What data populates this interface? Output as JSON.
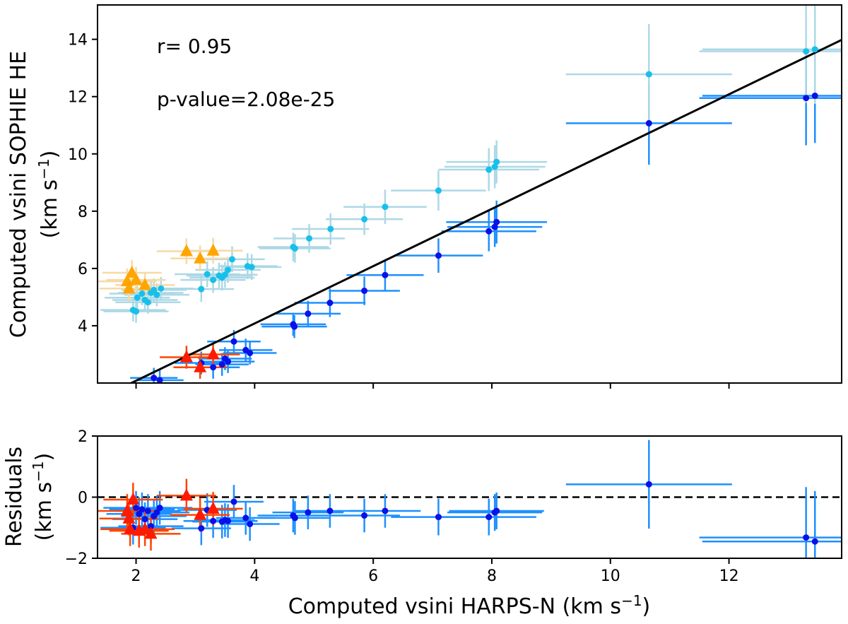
{
  "figure": {
    "top_axis_ylabel_line1": "Computed vsini SOPHIE HE",
    "top_axis_ylabel_line2_prefix": "(km s",
    "top_axis_ylabel_line2_exp": "−1",
    "top_axis_ylabel_line2_suffix": ")",
    "bottom_axis_ylabel_line1": "Residuals",
    "bottom_axis_ylabel_line2_prefix": "(km s",
    "bottom_axis_ylabel_line2_exp": "−1",
    "bottom_axis_ylabel_line2_suffix": ")",
    "xlabel_prefix": "Computed vsini HARPS-N (km s",
    "xlabel_exp": "−1",
    "xlabel_suffix": ")",
    "annotation_r": "r= 0.95",
    "annotation_p": "p-value=2.08e-25"
  },
  "colors": {
    "dark_blue_point": "#0a10e8",
    "blue_errorbar": "#1e90ff",
    "light_blue_point": "#17c0ea",
    "light_blue_errorbar": "#add8e6",
    "orange_triangle": "#ffa500",
    "orange_errorbar": "#f6d9a6",
    "red_triangle": "#ff1a00",
    "red_errorbar": "#ff4500",
    "fit_line": "#000000"
  },
  "chart_data": [
    {
      "type": "scatter",
      "panel": "top",
      "xlim": [
        1.35,
        13.9
      ],
      "ylim": [
        2.0,
        15.2
      ],
      "x_ticks": [
        2,
        4,
        6,
        8,
        10,
        12
      ],
      "y_ticks": [
        4,
        6,
        8,
        10,
        12,
        14
      ],
      "x_tick_labels_shown": false,
      "fit_line": {
        "slope": 1.0,
        "intercept": 0.08
      },
      "series": [
        {
          "marker": "circle",
          "color": "dark_blue_point",
          "errcolor": "blue_errorbar",
          "points": [
            [
              2.3,
              2.18,
              0.4,
              0.35
            ],
            [
              2.4,
              2.1,
              0.4,
              0.35
            ],
            [
              3.1,
              2.7,
              0.45,
              0.4
            ],
            [
              3.3,
              2.55,
              0.45,
              0.4
            ],
            [
              3.45,
              2.65,
              0.45,
              0.4
            ],
            [
              3.5,
              2.85,
              0.45,
              0.4
            ],
            [
              3.55,
              2.75,
              0.45,
              0.4
            ],
            [
              3.65,
              3.45,
              0.45,
              0.4
            ],
            [
              3.85,
              3.15,
              0.45,
              0.4
            ],
            [
              3.92,
              3.05,
              0.45,
              0.4
            ],
            [
              4.65,
              4.05,
              0.55,
              0.4
            ],
            [
              4.67,
              3.97,
              0.55,
              0.4
            ],
            [
              4.9,
              4.42,
              0.55,
              0.45
            ],
            [
              5.27,
              4.8,
              0.6,
              0.5
            ],
            [
              5.85,
              5.22,
              0.6,
              0.5
            ],
            [
              6.2,
              5.77,
              0.65,
              0.55
            ],
            [
              7.1,
              6.45,
              0.75,
              0.6
            ],
            [
              7.95,
              7.3,
              0.8,
              0.7
            ],
            [
              8.05,
              7.45,
              0.8,
              0.7
            ],
            [
              8.08,
              7.62,
              0.85,
              0.75
            ],
            [
              10.65,
              11.07,
              1.4,
              1.45
            ],
            [
              13.3,
              11.95,
              1.8,
              1.65
            ],
            [
              13.45,
              12.03,
              1.9,
              1.65
            ]
          ]
        },
        {
          "marker": "circle",
          "color": "light_blue_point",
          "errcolor": "light_blue_errorbar",
          "points": [
            [
              1.95,
              4.55,
              0.55,
              0.4
            ],
            [
              2.0,
              4.5,
              0.55,
              0.4
            ],
            [
              2.02,
              4.98,
              0.55,
              0.4
            ],
            [
              2.1,
              5.12,
              0.55,
              0.4
            ],
            [
              2.15,
              4.9,
              0.55,
              0.4
            ],
            [
              2.2,
              4.82,
              0.55,
              0.4
            ],
            [
              2.25,
              5.15,
              0.55,
              0.4
            ],
            [
              2.3,
              5.25,
              0.55,
              0.4
            ],
            [
              2.35,
              5.08,
              0.55,
              0.4
            ],
            [
              2.42,
              5.3,
              0.55,
              0.4
            ],
            [
              3.1,
              5.28,
              0.55,
              0.45
            ],
            [
              3.2,
              5.8,
              0.55,
              0.45
            ],
            [
              3.3,
              5.6,
              0.55,
              0.45
            ],
            [
              3.4,
              5.75,
              0.55,
              0.45
            ],
            [
              3.45,
              5.68,
              0.55,
              0.45
            ],
            [
              3.5,
              5.78,
              0.55,
              0.45
            ],
            [
              3.55,
              5.95,
              0.55,
              0.45
            ],
            [
              3.62,
              6.32,
              0.55,
              0.45
            ],
            [
              3.88,
              6.08,
              0.5,
              0.45
            ],
            [
              3.95,
              6.05,
              0.5,
              0.45
            ],
            [
              4.65,
              6.75,
              0.6,
              0.5
            ],
            [
              4.68,
              6.7,
              0.6,
              0.5
            ],
            [
              4.92,
              7.05,
              0.6,
              0.5
            ],
            [
              5.28,
              7.38,
              0.65,
              0.55
            ],
            [
              5.85,
              7.72,
              0.65,
              0.55
            ],
            [
              6.2,
              8.15,
              0.7,
              0.6
            ],
            [
              7.1,
              8.72,
              0.8,
              0.7
            ],
            [
              7.95,
              9.45,
              0.85,
              0.75
            ],
            [
              8.05,
              9.55,
              0.85,
              0.75
            ],
            [
              8.08,
              9.72,
              0.85,
              0.75
            ],
            [
              10.65,
              12.78,
              1.4,
              1.75
            ],
            [
              13.3,
              13.58,
              1.8,
              1.8
            ],
            [
              13.45,
              13.65,
              1.9,
              1.9
            ]
          ]
        },
        {
          "marker": "triangle",
          "color": "orange_triangle",
          "errcolor": "orange_errorbar",
          "points": [
            [
              1.85,
              5.55,
              0.5,
              0.45
            ],
            [
              1.88,
              5.3,
              0.5,
              0.45
            ],
            [
              1.93,
              5.85,
              0.5,
              0.45
            ],
            [
              2.0,
              5.6,
              0.5,
              0.45
            ],
            [
              2.15,
              5.42,
              0.5,
              0.45
            ],
            [
              2.85,
              6.6,
              0.5,
              0.45
            ],
            [
              3.08,
              6.35,
              0.5,
              0.45
            ],
            [
              3.3,
              6.62,
              0.5,
              0.45
            ]
          ]
        },
        {
          "marker": "triangle",
          "color": "red_triangle",
          "errcolor": "red_errorbar",
          "points": [
            [
              2.85,
              2.9,
              0.45,
              0.4
            ],
            [
              3.08,
              2.55,
              0.45,
              0.4
            ],
            [
              3.3,
              3.0,
              0.45,
              0.4
            ]
          ]
        }
      ]
    },
    {
      "type": "scatter",
      "panel": "bottom",
      "xlim": [
        1.35,
        13.9
      ],
      "ylim": [
        -2.0,
        2.0
      ],
      "x_ticks": [
        2,
        4,
        6,
        8,
        10,
        12
      ],
      "y_ticks": [
        -2,
        0,
        2
      ],
      "reference_line": {
        "y": 0,
        "style": "dashed"
      },
      "series": [
        {
          "marker": "circle",
          "color": "dark_blue_point",
          "errcolor": "blue_errorbar",
          "points": [
            [
              1.95,
              -1.0,
              0.55,
              0.55
            ],
            [
              2.0,
              -0.35,
              0.55,
              0.55
            ],
            [
              2.05,
              -0.55,
              0.55,
              0.55
            ],
            [
              2.1,
              -0.4,
              0.55,
              0.55
            ],
            [
              2.15,
              -0.72,
              0.55,
              0.55
            ],
            [
              2.2,
              -0.45,
              0.55,
              0.55
            ],
            [
              2.25,
              -0.95,
              0.55,
              0.55
            ],
            [
              2.3,
              -0.62,
              0.55,
              0.55
            ],
            [
              2.35,
              -0.5,
              0.55,
              0.55
            ],
            [
              2.4,
              -0.35,
              0.55,
              0.55
            ],
            [
              3.1,
              -1.02,
              0.5,
              0.55
            ],
            [
              3.2,
              -0.42,
              0.5,
              0.55
            ],
            [
              3.3,
              -0.78,
              0.5,
              0.55
            ],
            [
              3.45,
              -0.8,
              0.5,
              0.55
            ],
            [
              3.5,
              -0.75,
              0.5,
              0.55
            ],
            [
              3.55,
              -0.78,
              0.5,
              0.55
            ],
            [
              3.65,
              -0.15,
              0.5,
              0.55
            ],
            [
              3.85,
              -0.68,
              0.5,
              0.55
            ],
            [
              3.92,
              -0.88,
              0.5,
              0.55
            ],
            [
              4.65,
              -0.6,
              0.6,
              0.55
            ],
            [
              4.68,
              -0.68,
              0.6,
              0.55
            ],
            [
              4.9,
              -0.5,
              0.6,
              0.55
            ],
            [
              5.27,
              -0.45,
              0.6,
              0.55
            ],
            [
              5.85,
              -0.6,
              0.6,
              0.55
            ],
            [
              6.2,
              -0.45,
              0.6,
              0.55
            ],
            [
              7.1,
              -0.65,
              0.8,
              0.6
            ],
            [
              7.95,
              -0.65,
              0.8,
              0.6
            ],
            [
              8.05,
              -0.5,
              0.8,
              0.6
            ],
            [
              8.08,
              -0.45,
              0.8,
              0.6
            ],
            [
              10.65,
              0.42,
              1.4,
              1.45
            ],
            [
              13.3,
              -1.32,
              1.8,
              1.65
            ],
            [
              13.45,
              -1.45,
              1.9,
              1.65
            ]
          ]
        },
        {
          "marker": "triangle",
          "color": "red_triangle",
          "errcolor": "red_errorbar",
          "points": [
            [
              1.85,
              -0.45,
              0.5,
              0.55
            ],
            [
              1.88,
              -0.7,
              0.5,
              0.55
            ],
            [
              1.9,
              -1.05,
              0.5,
              0.55
            ],
            [
              1.95,
              -0.08,
              0.5,
              0.55
            ],
            [
              2.05,
              -1.1,
              0.5,
              0.55
            ],
            [
              2.15,
              -1.05,
              0.5,
              0.55
            ],
            [
              2.25,
              -1.2,
              0.5,
              0.55
            ],
            [
              2.85,
              0.05,
              0.5,
              0.55
            ],
            [
              3.08,
              -0.58,
              0.5,
              0.55
            ],
            [
              3.3,
              -0.38,
              0.5,
              0.55
            ]
          ]
        }
      ]
    }
  ]
}
